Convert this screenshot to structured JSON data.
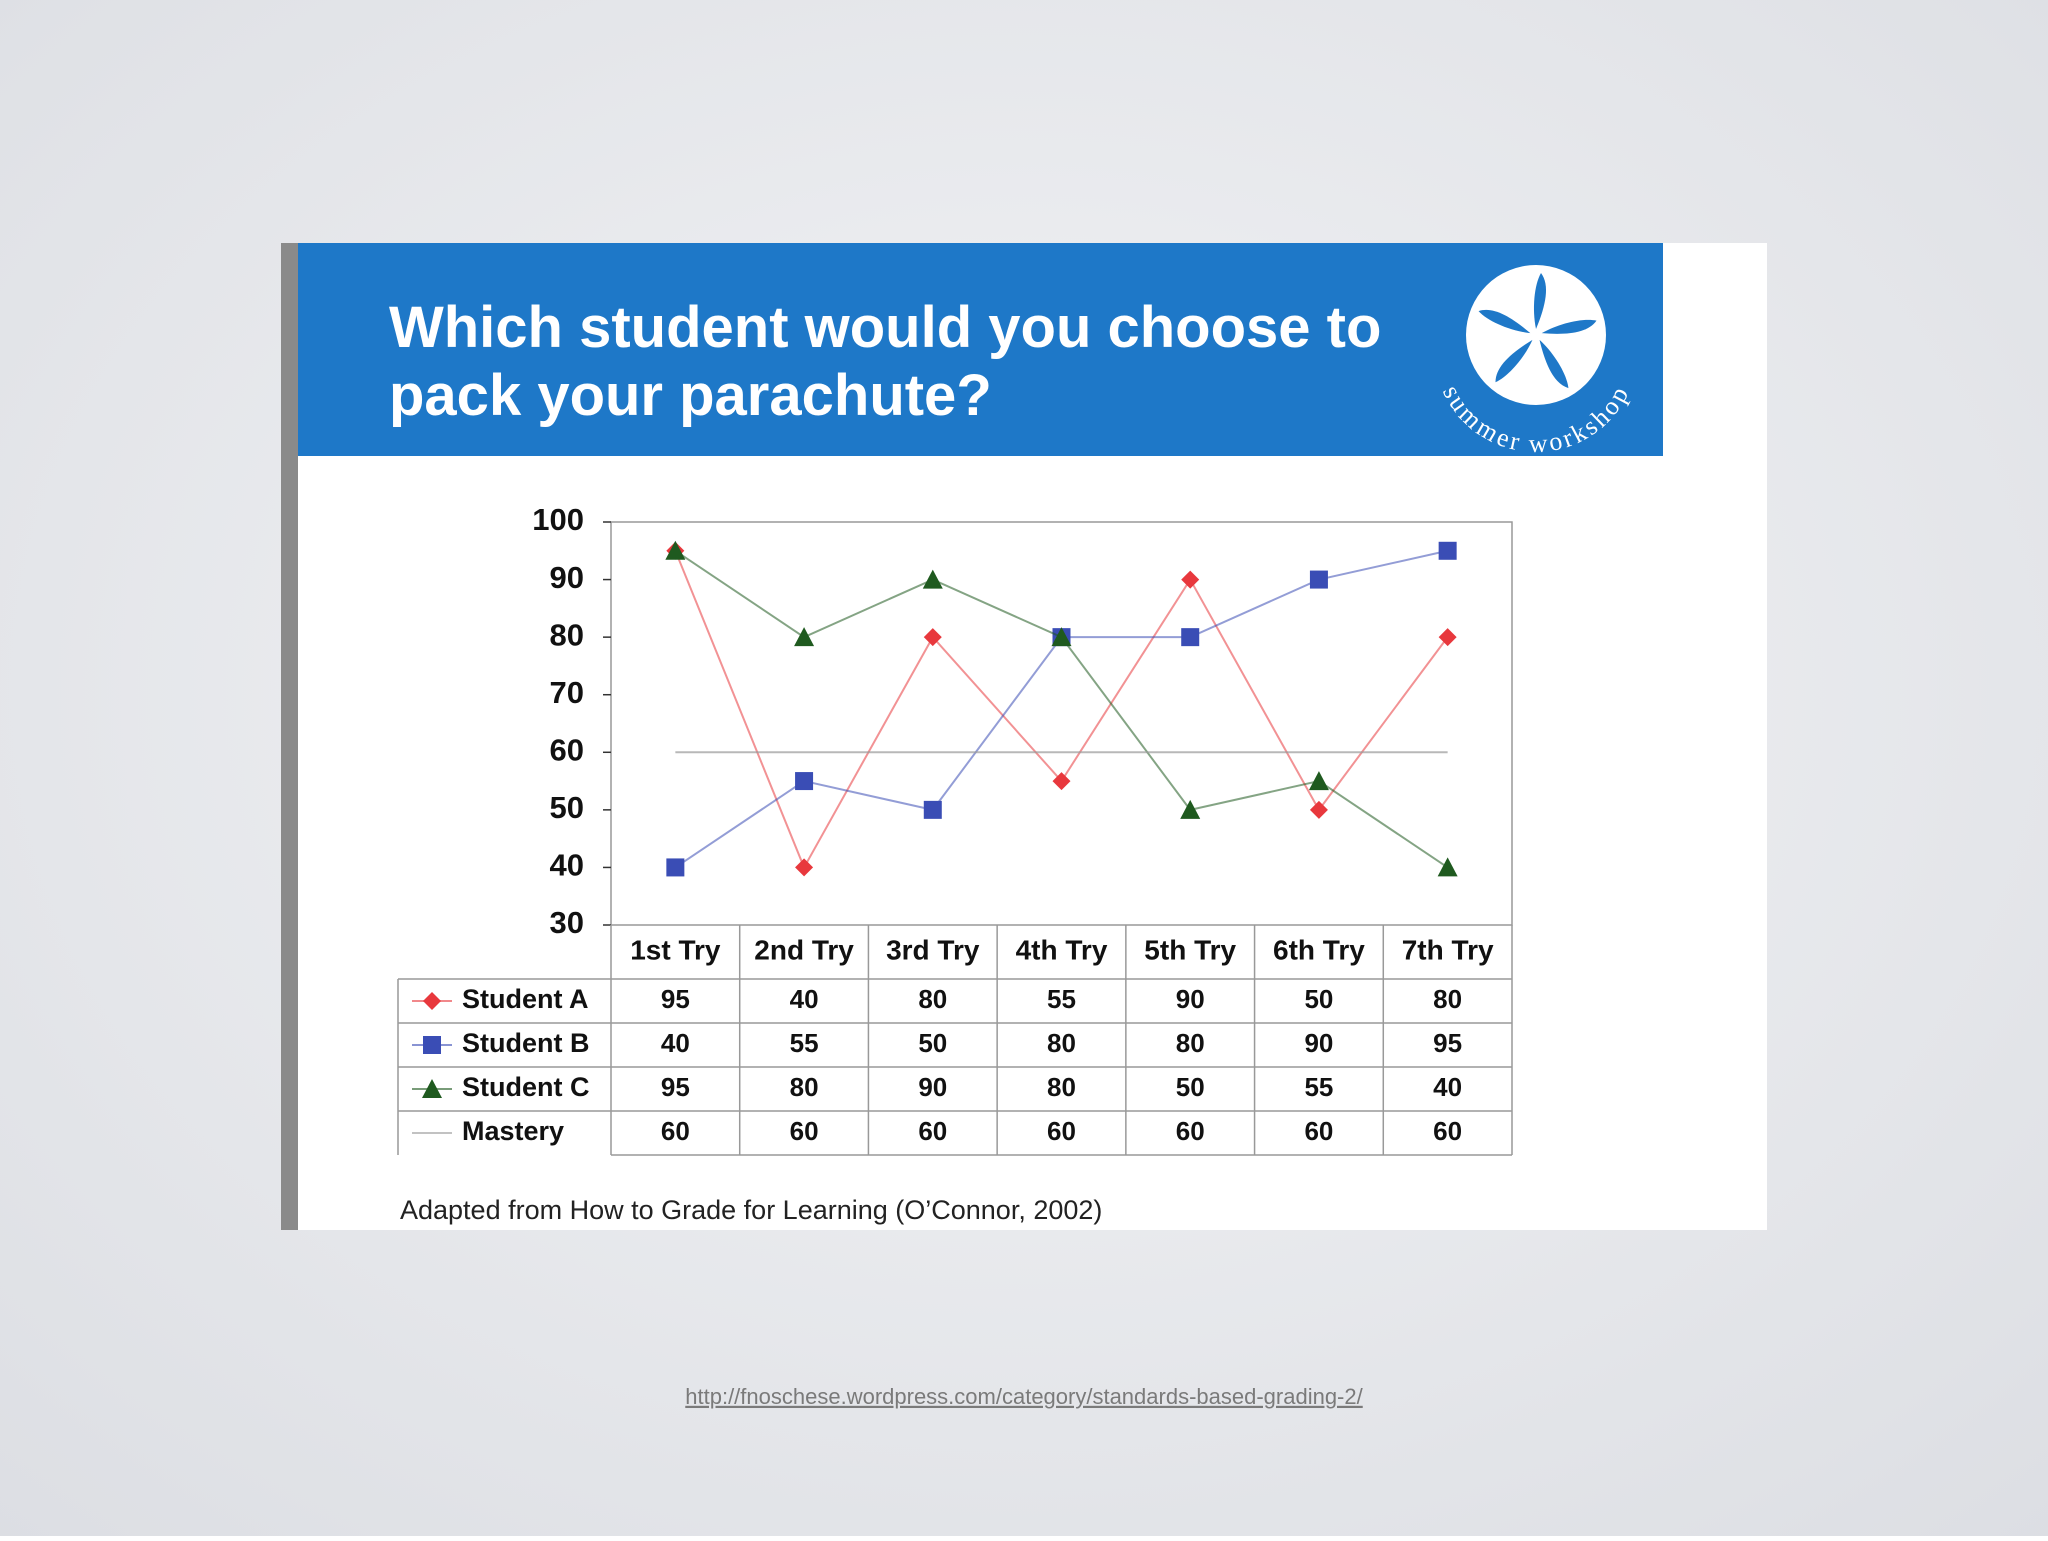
{
  "chart_data": {
    "type": "line",
    "title": "Which student would you choose to pack your parachute?",
    "logo_text": "summer workshop",
    "categories": [
      "1st Try",
      "2nd Try",
      "3rd Try",
      "4th Try",
      "5th Try",
      "6th Try",
      "7th Try"
    ],
    "series": [
      {
        "name": "Student A",
        "color": "#e8383d",
        "marker": "diamond",
        "values": [
          95,
          40,
          80,
          55,
          90,
          50,
          80
        ]
      },
      {
        "name": "Student B",
        "color": "#3a4db5",
        "marker": "square",
        "values": [
          40,
          55,
          50,
          80,
          80,
          90,
          95
        ]
      },
      {
        "name": "Student C",
        "color": "#1f5a1f",
        "marker": "triangle",
        "values": [
          95,
          80,
          90,
          80,
          50,
          55,
          40
        ]
      },
      {
        "name": "Mastery",
        "color": "#9a9a9a",
        "values": [
          60,
          60,
          60,
          60,
          60,
          60,
          60
        ]
      }
    ],
    "ylim": [
      30,
      100
    ],
    "yticks": [
      30,
      40,
      50,
      60,
      70,
      80,
      90,
      100
    ],
    "source_note": "Adapted from How  to Grade for Learning (O’Connor, 2002)"
  },
  "slide": {
    "link": "http://fnoschese.wordpress.com/category/standards-based-grading-2/"
  }
}
